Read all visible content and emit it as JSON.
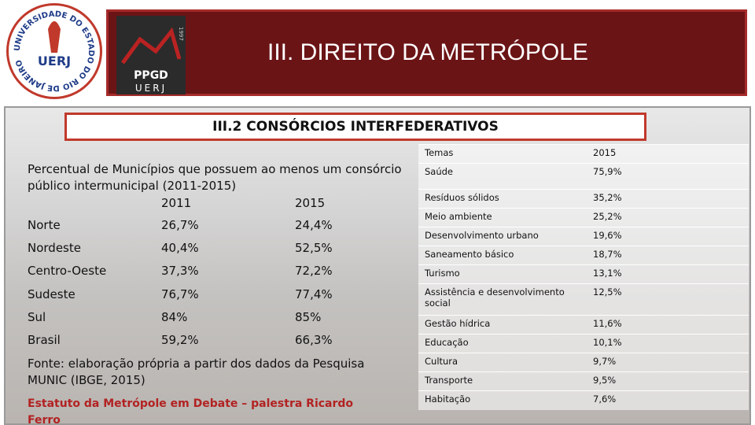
{
  "header": {
    "title": "III. DIREITO DA METRÓPOLE",
    "uerj_logo": {
      "ring_text": "UNIVERSIDADE DO ESTADO DO RIO DE JANEIRO",
      "name": "UERJ"
    },
    "ppgd_logo": {
      "name": "PPGD",
      "institution": "UERJ",
      "year": "1997"
    }
  },
  "subtitle": "III.2 CONSÓRCIOS INTERFEDERATIVOS",
  "left_table": {
    "caption": "Percentual de Municípios que possuem ao menos um consórcio público intermunicipal (2011-2015)",
    "columns": [
      "2011",
      "2015"
    ],
    "rows": [
      [
        "Norte",
        "26,7%",
        "24,4%"
      ],
      [
        "Nordeste",
        "40,4%",
        "52,5%"
      ],
      [
        "Centro-Oeste",
        "37,3%",
        "72,2%"
      ],
      [
        "Sudeste",
        "76,7%",
        "77,4%"
      ],
      [
        "Sul",
        "84%",
        "85%"
      ],
      [
        "Brasil",
        "59,2%",
        "66,3%"
      ]
    ]
  },
  "source": "Fonte: elaboração própria a partir dos dados da Pesquisa MUNIC (IBGE, 2015)",
  "footer": "Estatuto da Metrópole em Debate – palestra Ricardo Ferro",
  "right_table": {
    "columns": [
      "Temas",
      "2015"
    ],
    "rows": [
      [
        "Saúde",
        "75,9%"
      ],
      [
        "Resíduos sólidos",
        "35,2%"
      ],
      [
        "Meio ambiente",
        "25,2%"
      ],
      [
        "Desenvolvimento urbano",
        "19,6%"
      ],
      [
        "Saneamento básico",
        "18,7%"
      ],
      [
        "Turismo",
        "13,1%"
      ],
      [
        "Assistência e desenvolvimento social",
        "12,5%"
      ],
      [
        "Gestão hídrica",
        "11,6%"
      ],
      [
        "Educação",
        "10,1%"
      ],
      [
        "Cultura",
        "9,7%"
      ],
      [
        "Transporte",
        "9,5%"
      ],
      [
        "Habitação",
        "7,6%"
      ]
    ]
  }
}
